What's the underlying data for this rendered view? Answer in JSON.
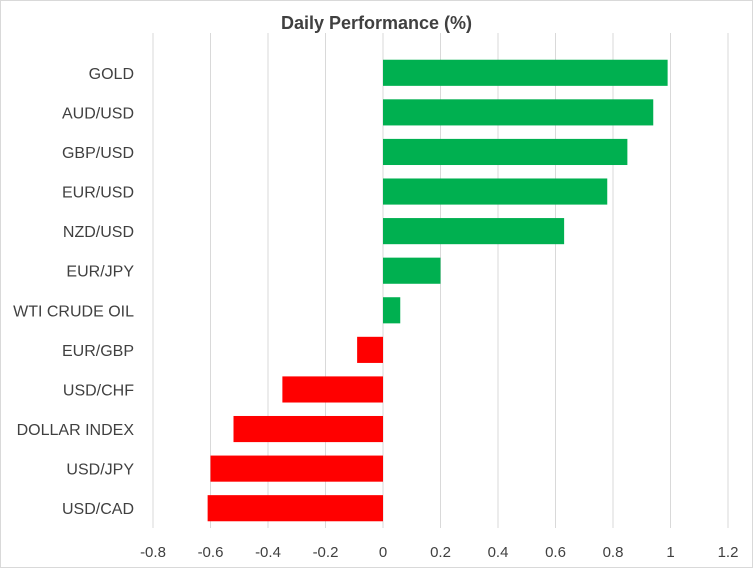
{
  "chart_data": {
    "type": "bar",
    "orientation": "horizontal",
    "title": "Daily Performance  (%)",
    "xlabel": "",
    "ylabel": "",
    "categories": [
      "GOLD",
      "AUD/USD",
      "GBP/USD",
      "EUR/USD",
      "NZD/USD",
      "EUR/JPY",
      "WTI CRUDE OIL",
      "EUR/GBP",
      "USD/CHF",
      "DOLLAR INDEX",
      "USD/JPY",
      "USD/CAD"
    ],
    "values": [
      0.99,
      0.94,
      0.85,
      0.78,
      0.63,
      0.2,
      0.06,
      -0.09,
      -0.35,
      -0.52,
      -0.6,
      -0.61
    ],
    "xlim": [
      -0.8,
      1.2
    ],
    "xticks": [
      "-0.8",
      "-0.6",
      "-0.4",
      "-0.2",
      "0",
      "0.2",
      "0.4",
      "0.6",
      "0.8",
      "1",
      "1.2"
    ],
    "grid": true,
    "legend": "none",
    "colors": {
      "positive": "#00b050",
      "negative": "#ff0000"
    }
  }
}
